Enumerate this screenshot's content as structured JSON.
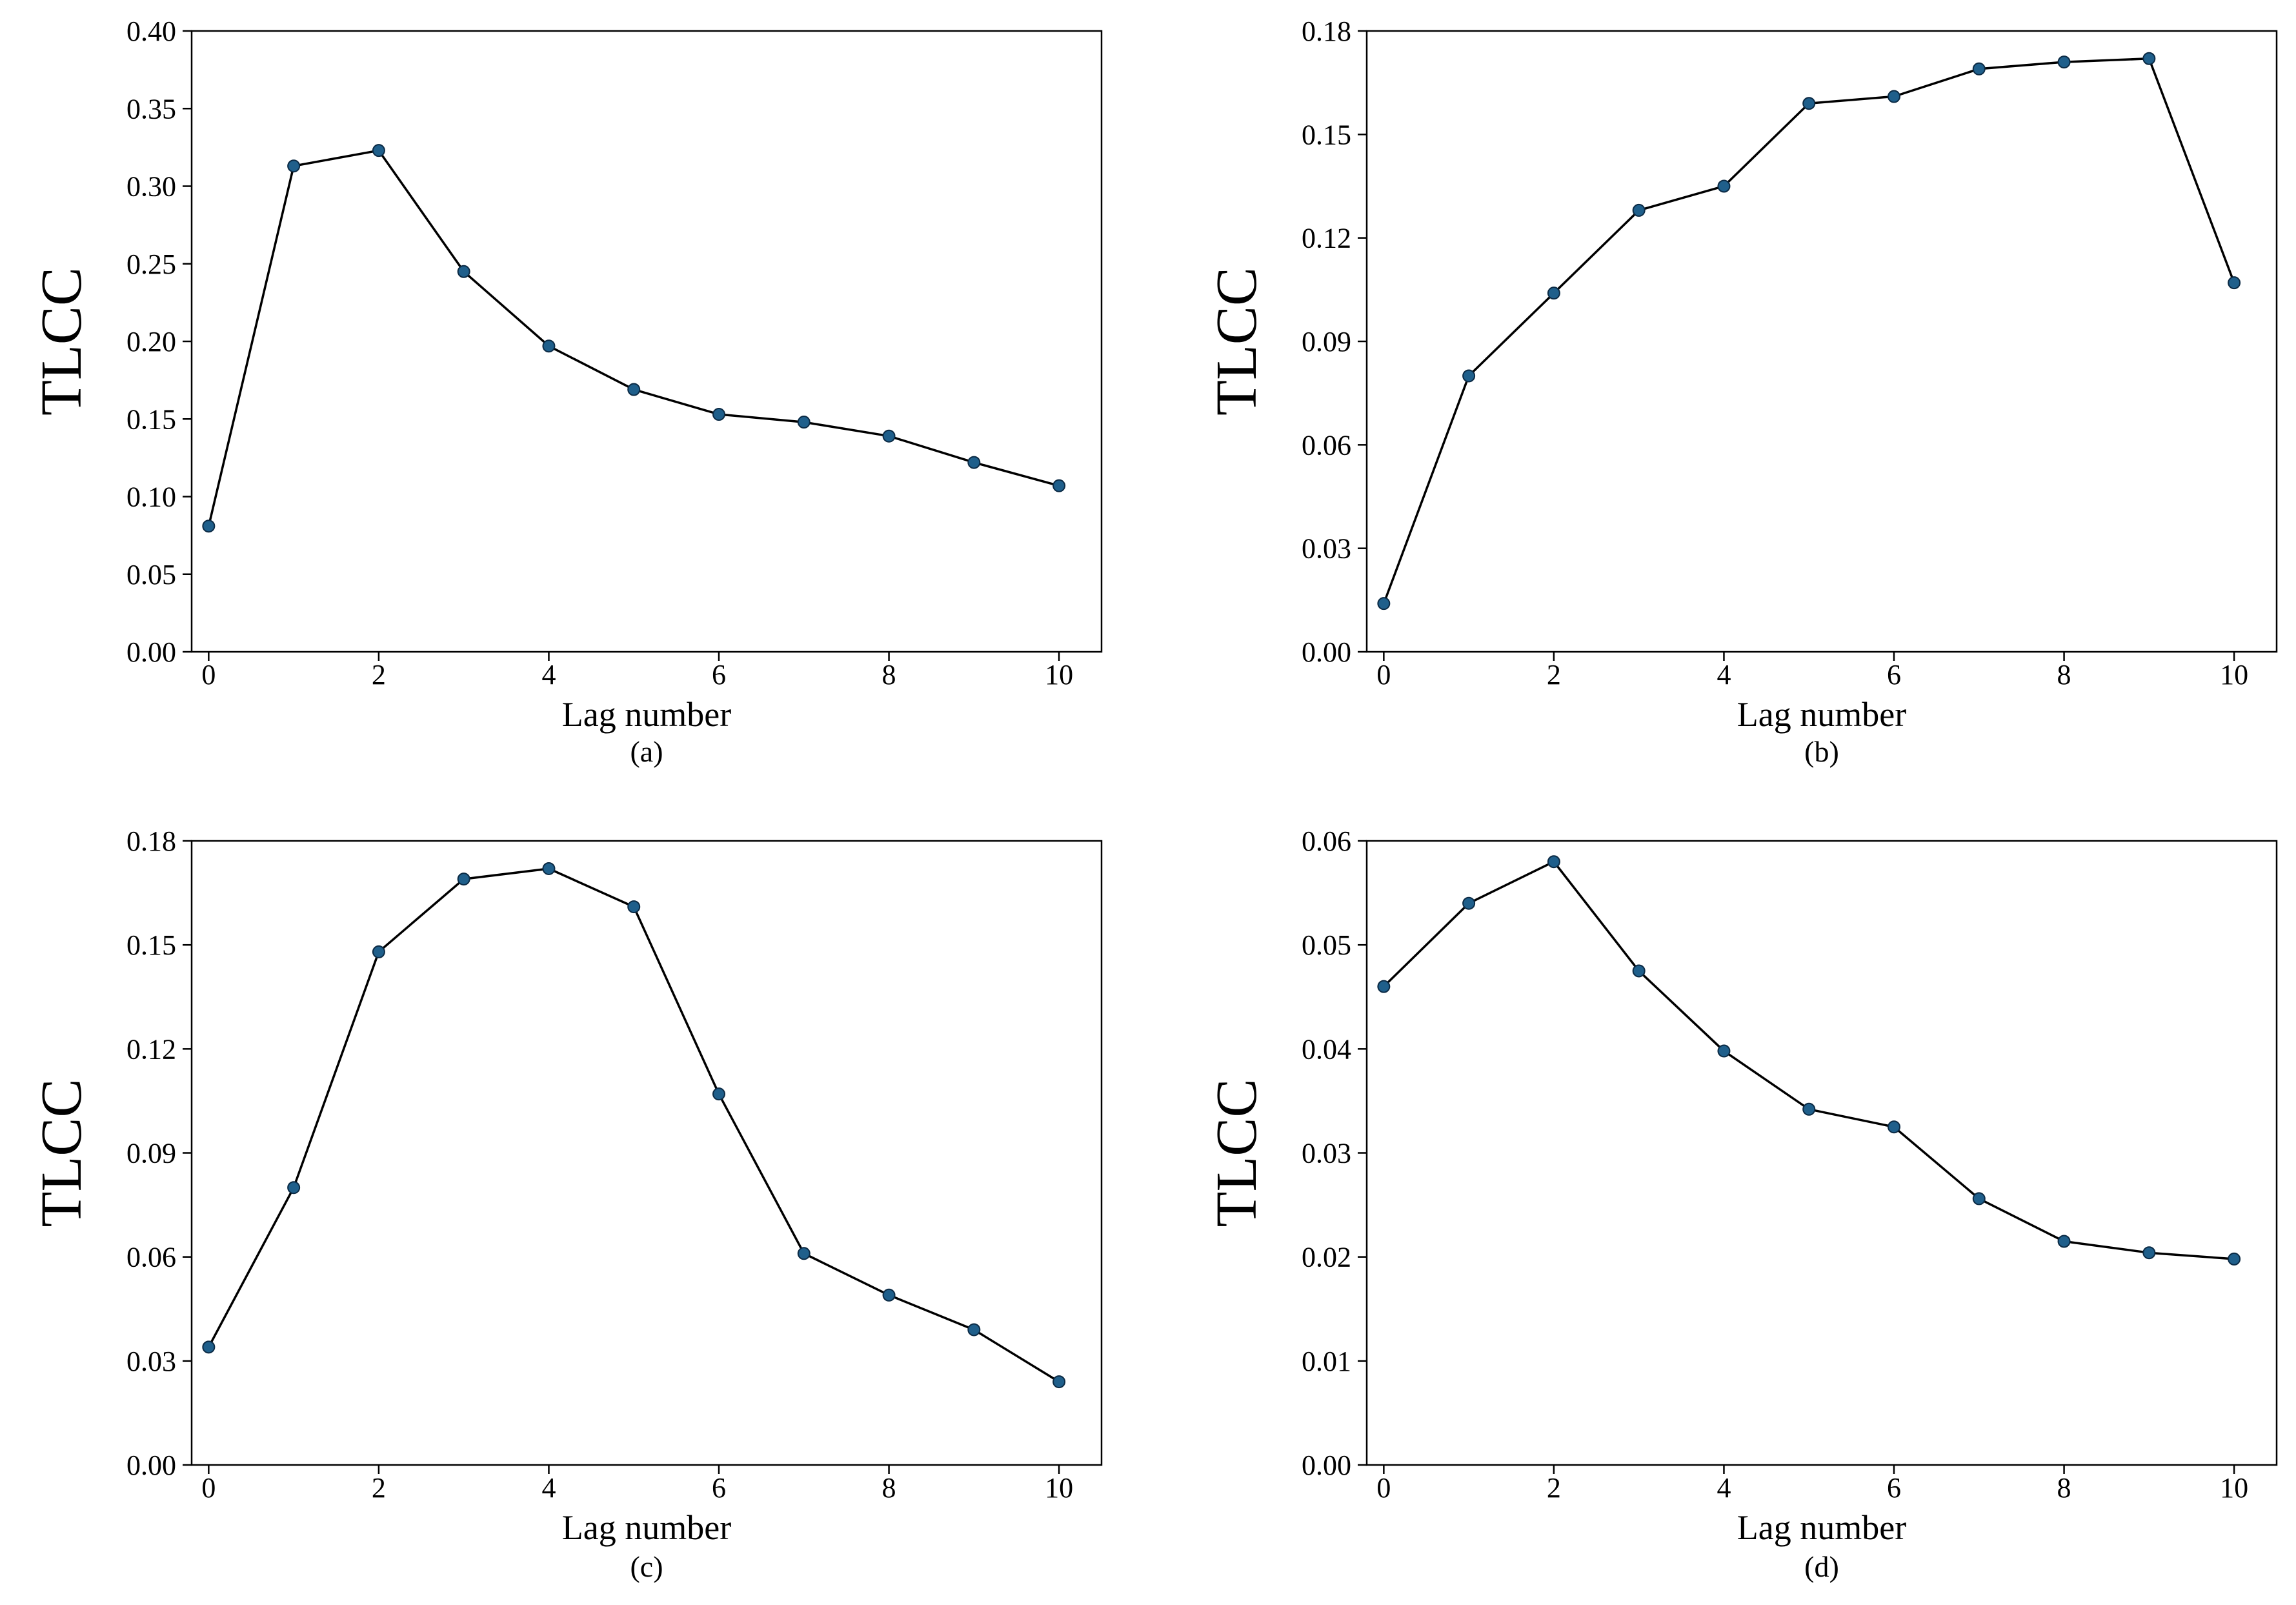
{
  "chart_data": [
    {
      "type": "line",
      "panel_label": "(a)",
      "xlabel": "Lag number",
      "ylabel": "TLCC",
      "x": [
        0,
        1,
        2,
        3,
        4,
        5,
        6,
        7,
        8,
        9,
        10
      ],
      "values": [
        0.081,
        0.313,
        0.323,
        0.245,
        0.197,
        0.169,
        0.153,
        0.148,
        0.139,
        0.122,
        0.107
      ],
      "xlim": [
        -0.2,
        10.5
      ],
      "ylim": [
        0,
        0.4
      ],
      "xticks": [
        0,
        2,
        4,
        6,
        8,
        10
      ],
      "xtick_labels": [
        "0",
        "2",
        "4",
        "6",
        "8",
        "10"
      ],
      "yticks": [
        0,
        0.05,
        0.1,
        0.15,
        0.2,
        0.25,
        0.3,
        0.35,
        0.4
      ],
      "ytick_labels": [
        "0.00",
        "0.05",
        "0.10",
        "0.15",
        "0.20",
        "0.25",
        "0.30",
        "0.35",
        "0.40"
      ],
      "grid": false
    },
    {
      "type": "line",
      "panel_label": "(b)",
      "xlabel": "Lag number",
      "ylabel": "TLCC",
      "x": [
        0,
        1,
        2,
        3,
        4,
        5,
        6,
        7,
        8,
        9,
        10
      ],
      "values": [
        0.014,
        0.08,
        0.104,
        0.128,
        0.135,
        0.159,
        0.161,
        0.169,
        0.171,
        0.172,
        0.107
      ],
      "xlim": [
        -0.2,
        10.5
      ],
      "ylim": [
        0,
        0.18
      ],
      "xticks": [
        0,
        2,
        4,
        6,
        8,
        10
      ],
      "xtick_labels": [
        "0",
        "2",
        "4",
        "6",
        "8",
        "10"
      ],
      "yticks": [
        0,
        0.03,
        0.06,
        0.09,
        0.12,
        0.15,
        0.18
      ],
      "ytick_labels": [
        "0.00",
        "0.03",
        "0.06",
        "0.09",
        "0.12",
        "0.15",
        "0.18"
      ],
      "grid": false
    },
    {
      "type": "line",
      "panel_label": "(c)",
      "xlabel": "Lag number",
      "ylabel": "TLCC",
      "x": [
        0,
        1,
        2,
        3,
        4,
        5,
        6,
        7,
        8,
        9,
        10
      ],
      "values": [
        0.034,
        0.08,
        0.148,
        0.169,
        0.172,
        0.161,
        0.107,
        0.061,
        0.049,
        0.039,
        0.024
      ],
      "xlim": [
        -0.2,
        10.5
      ],
      "ylim": [
        0,
        0.18
      ],
      "xticks": [
        0,
        2,
        4,
        6,
        8,
        10
      ],
      "xtick_labels": [
        "0",
        "2",
        "4",
        "6",
        "8",
        "10"
      ],
      "yticks": [
        0,
        0.03,
        0.06,
        0.09,
        0.12,
        0.15,
        0.18
      ],
      "ytick_labels": [
        "0.00",
        "0.03",
        "0.06",
        "0.09",
        "0.12",
        "0.15",
        "0.18"
      ],
      "grid": false
    },
    {
      "type": "line",
      "panel_label": "(d)",
      "xlabel": "Lag number",
      "ylabel": "TLCC",
      "x": [
        0,
        1,
        2,
        3,
        4,
        5,
        6,
        7,
        8,
        9,
        10
      ],
      "values": [
        0.046,
        0.054,
        0.058,
        0.0475,
        0.0398,
        0.0342,
        0.0325,
        0.0256,
        0.0215,
        0.0204,
        0.0198
      ],
      "xlim": [
        -0.2,
        10.5
      ],
      "ylim": [
        0,
        0.06
      ],
      "xticks": [
        0,
        2,
        4,
        6,
        8,
        10
      ],
      "xtick_labels": [
        "0",
        "2",
        "4",
        "6",
        "8",
        "10"
      ],
      "yticks": [
        0,
        0.01,
        0.02,
        0.03,
        0.04,
        0.05,
        0.06
      ],
      "ytick_labels": [
        "0.00",
        "0.01",
        "0.02",
        "0.03",
        "0.04",
        "0.05",
        "0.06"
      ],
      "grid": false
    }
  ],
  "colors": {
    "line": "#000000",
    "marker": "#1f5f8b",
    "marker_edge": "#0b2a44",
    "axis": "#000000"
  }
}
